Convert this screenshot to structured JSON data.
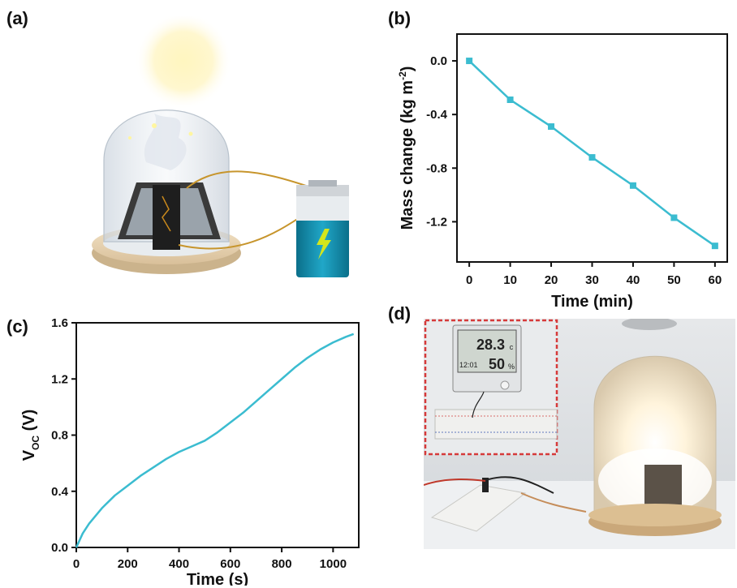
{
  "panels": {
    "a": "(a)",
    "b": "(b)",
    "c": "(c)",
    "d": "(d)"
  },
  "chart_data": [
    {
      "panel": "b",
      "type": "line",
      "x": [
        0,
        10,
        20,
        30,
        40,
        50,
        60
      ],
      "series": [
        {
          "values": [
            0.0,
            -0.29,
            -0.49,
            -0.72,
            -0.93,
            -1.17,
            -1.38
          ],
          "color": "#3bbcd0"
        }
      ],
      "xlabel": "Time (min)",
      "ylabel_base": "Mass change (kg m",
      "ylabel_sup": "-2",
      "ylabel_end": ")",
      "xlim": [
        -3,
        63
      ],
      "ylim": [
        -1.5,
        0.2
      ],
      "xticks": [
        "0",
        "10",
        "20",
        "30",
        "40",
        "50",
        "60"
      ],
      "yticks": [
        "0.0",
        "-0.4",
        "-0.8",
        "-1.2"
      ],
      "marker": "square"
    },
    {
      "panel": "c",
      "type": "line",
      "x": [
        0,
        25,
        50,
        100,
        150,
        200,
        250,
        300,
        350,
        400,
        450,
        500,
        550,
        600,
        650,
        700,
        750,
        800,
        850,
        900,
        950,
        1000,
        1050,
        1080
      ],
      "series": [
        {
          "values": [
            0.0,
            0.1,
            0.17,
            0.28,
            0.37,
            0.44,
            0.51,
            0.57,
            0.63,
            0.68,
            0.72,
            0.76,
            0.82,
            0.89,
            0.96,
            1.04,
            1.12,
            1.2,
            1.28,
            1.35,
            1.41,
            1.46,
            1.5,
            1.52
          ],
          "color": "#3bbcd0"
        }
      ],
      "xlabel": "Time (s)",
      "ylabel_main": "V",
      "ylabel_sub": "OC",
      "ylabel_end": " (V)",
      "xlim": [
        0,
        1100
      ],
      "ylim": [
        0,
        1.6
      ],
      "xticks": [
        "0",
        "200",
        "400",
        "600",
        "800",
        "1000"
      ],
      "yticks": [
        "0.0",
        "0.4",
        "0.8",
        "1.2",
        "1.6"
      ]
    }
  ],
  "photo_d": {
    "thermo_temp": "28.3",
    "thermo_temp_unit": "c",
    "thermo_time": "12:01",
    "thermo_humidity": "50",
    "thermo_humidity_unit": "%",
    "inset_border_color": "#d63a3a"
  }
}
